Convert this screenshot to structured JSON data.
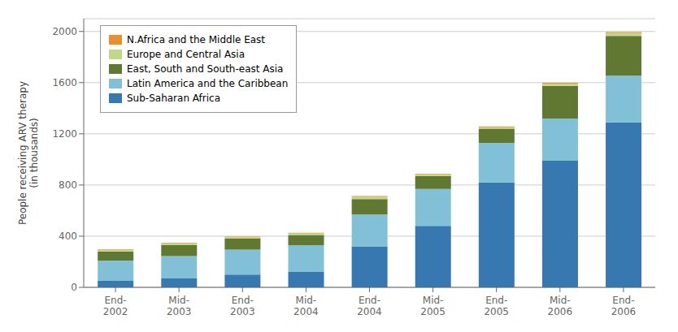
{
  "chart_data": {
    "type": "bar",
    "stacked": true,
    "categories": [
      "End-\n2002",
      "Mid-\n2003",
      "End-\n2003",
      "Mid-\n2004",
      "End-\n2004",
      "Mid-\n2005",
      "End-\n2005",
      "Mid-\n2006",
      "End-\n2006"
    ],
    "series": [
      {
        "name": "Sub-Saharan Africa",
        "color": "#3878b0",
        "values": [
          50,
          70,
          100,
          120,
          320,
          480,
          820,
          990,
          1290
        ]
      },
      {
        "name": "Latin America and the Caribbean",
        "color": "#82c0d8",
        "values": [
          160,
          175,
          195,
          210,
          250,
          290,
          310,
          330,
          365
        ]
      },
      {
        "name": "East, South and South-east Asia",
        "color": "#607832",
        "values": [
          70,
          85,
          85,
          80,
          120,
          100,
          110,
          255,
          310
        ]
      },
      {
        "name": "Europe and Central Asia",
        "color": "#c0d888",
        "values": [
          12,
          12,
          12,
          12,
          18,
          12,
          12,
          18,
          22
        ]
      },
      {
        "name": "N.Africa and the Middle East",
        "color": "#e89030",
        "values": [
          5,
          5,
          5,
          5,
          5,
          5,
          5,
          5,
          8
        ]
      }
    ],
    "ylabel": "People receiving ARV therapy\n(in thousands)",
    "ylim": [
      0,
      2100
    ],
    "yticks": [
      0,
      400,
      800,
      1200,
      1600,
      2000
    ],
    "grid": true,
    "legend": "upper left"
  }
}
